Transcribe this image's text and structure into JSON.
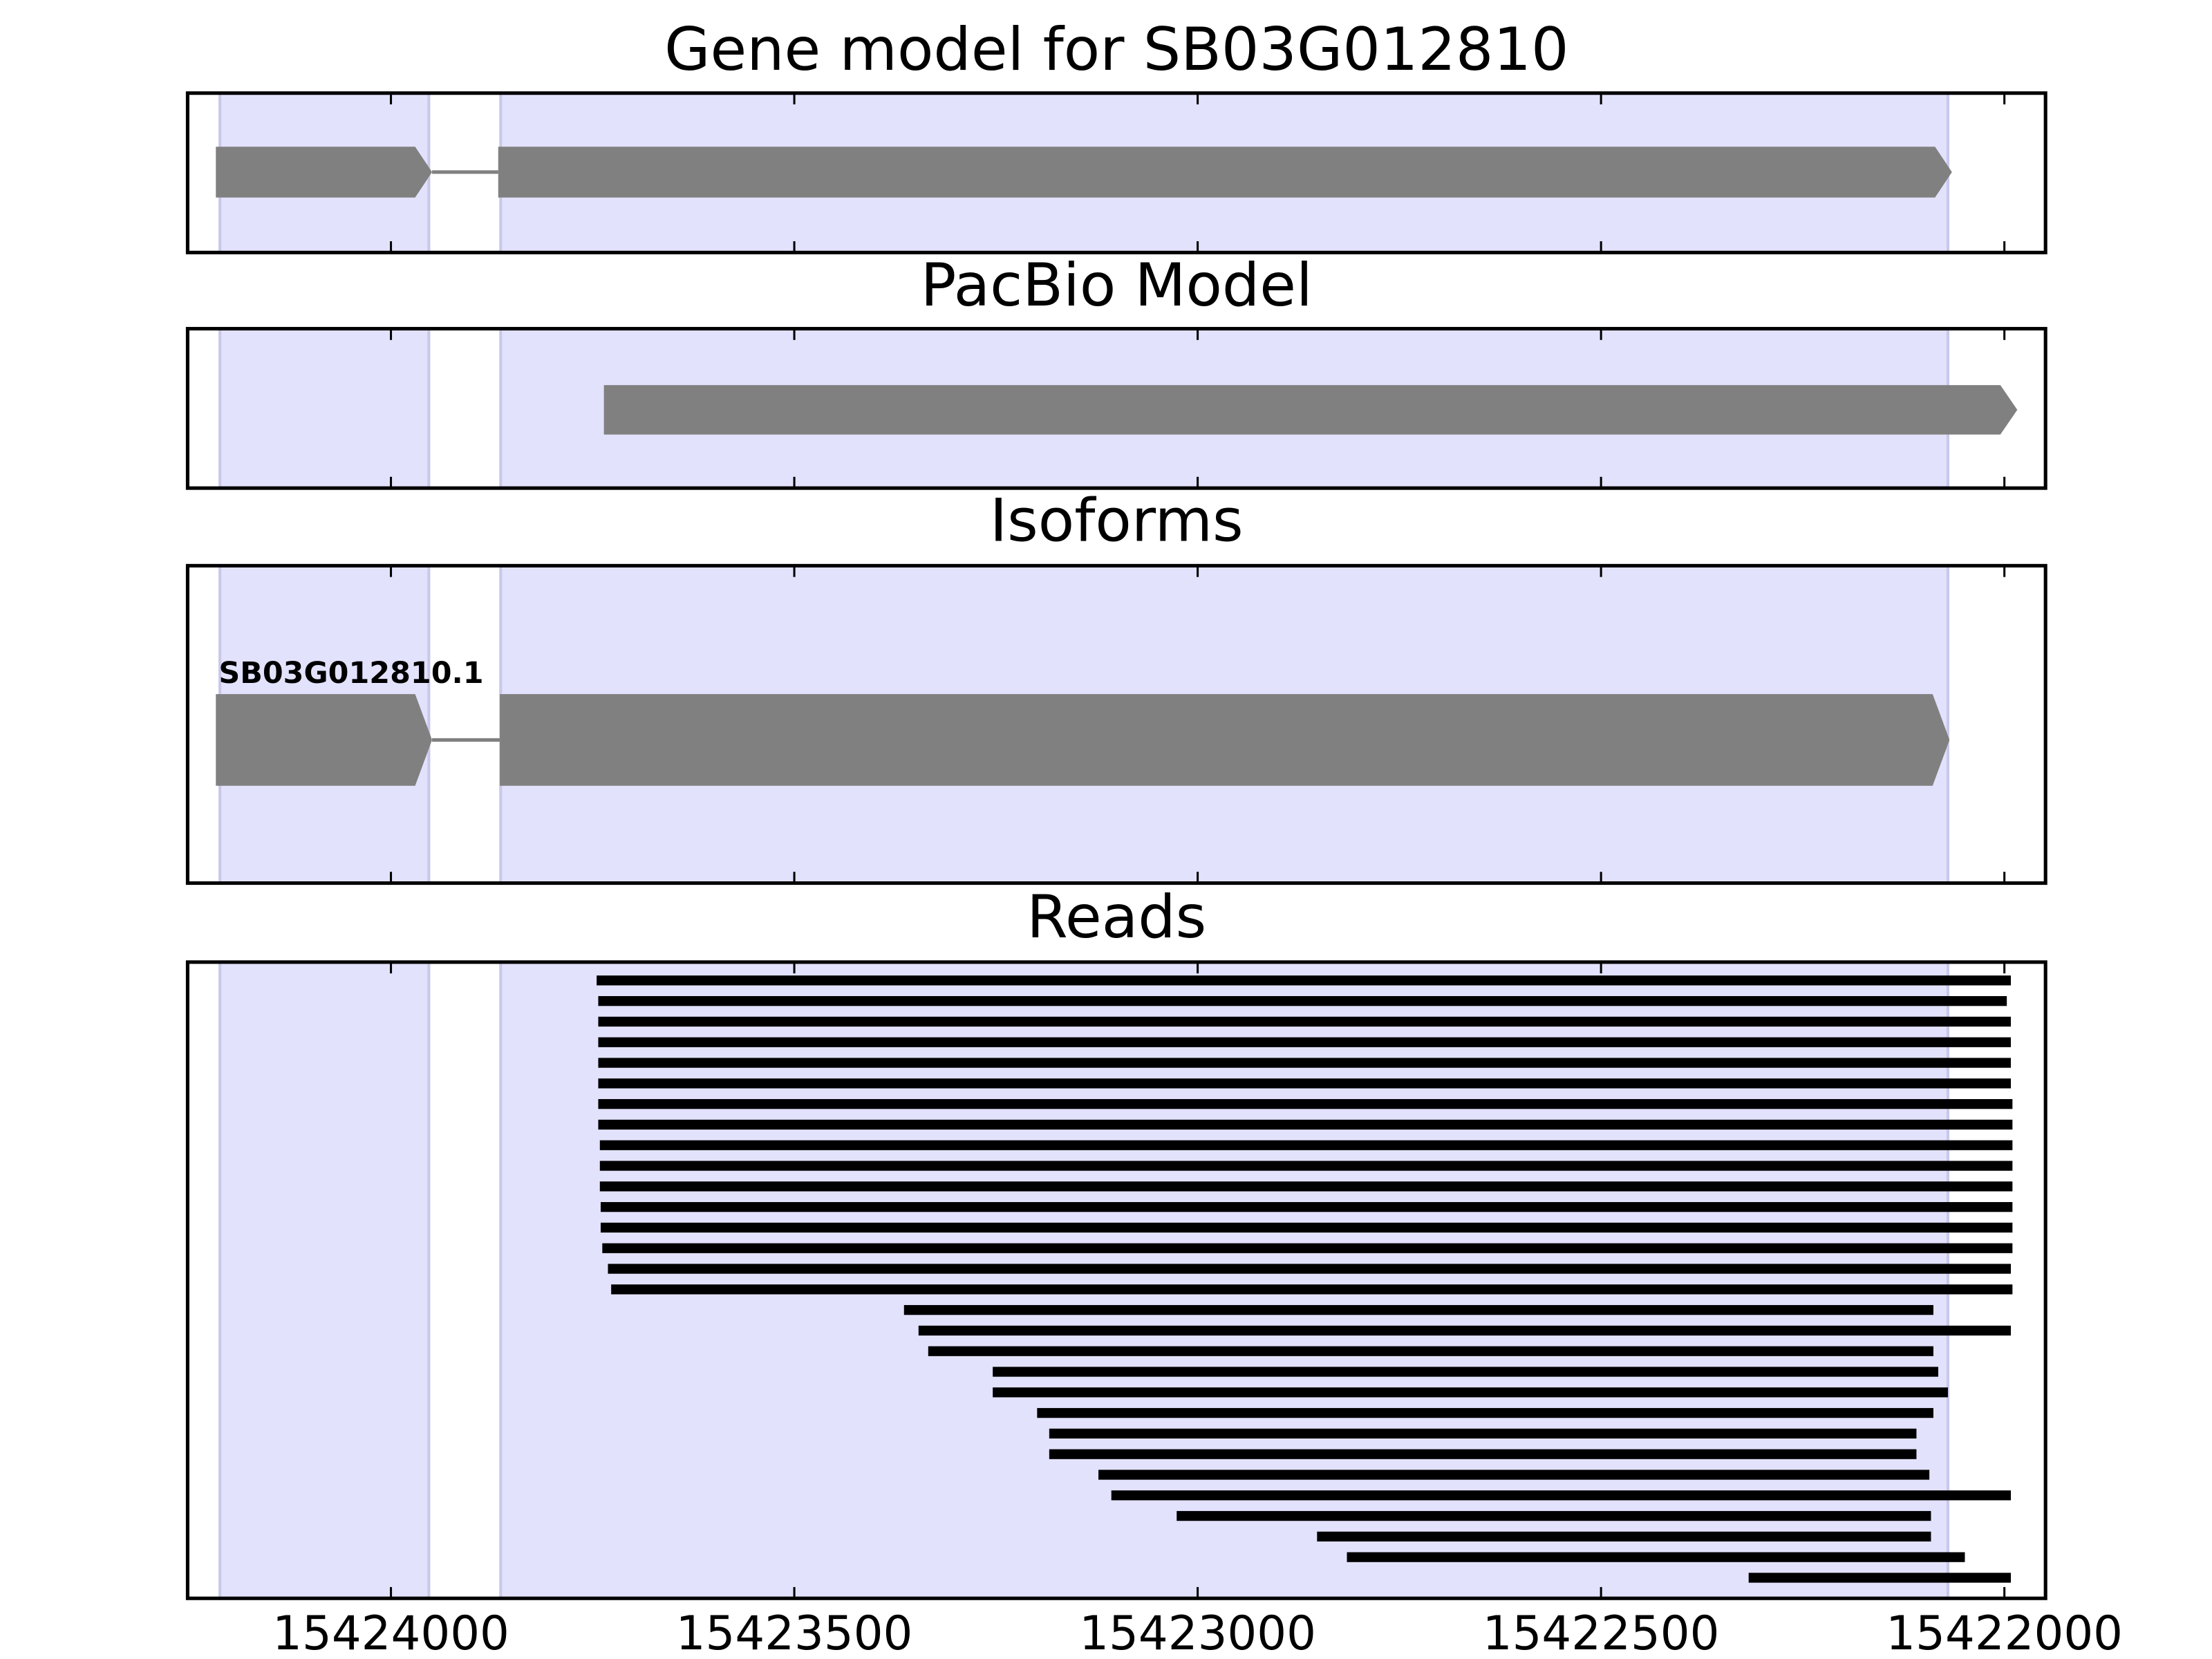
{
  "chart_data": {
    "type": "gene-tracks",
    "xlim": [
      15424252,
      15421949
    ],
    "xticks": [
      15424000,
      15423500,
      15423000,
      15422500,
      15422000
    ],
    "shaded": [
      [
        15424212,
        15423953
      ],
      [
        15423864,
        15422070
      ]
    ],
    "panels": [
      {
        "type": "gene",
        "title": "Gene model for SB03G012810",
        "exons": [
          [
            15424217,
            15423949
          ],
          [
            15423867,
            15422065
          ]
        ]
      },
      {
        "type": "gene",
        "title": "PacBio Model",
        "exons": [
          [
            15423736,
            15421984
          ]
        ]
      },
      {
        "type": "gene",
        "title": "Isoforms",
        "label": "SB03G012810.1",
        "exons": [
          [
            15424217,
            15423949
          ],
          [
            15423865,
            15422068
          ]
        ]
      },
      {
        "type": "reads",
        "title": "Reads",
        "reads": [
          [
            15423745,
            15421992
          ],
          [
            15423743,
            15421997
          ],
          [
            15423743,
            15421992
          ],
          [
            15423743,
            15421992
          ],
          [
            15423743,
            15421992
          ],
          [
            15423743,
            15421992
          ],
          [
            15423743,
            15421990
          ],
          [
            15423743,
            15421990
          ],
          [
            15423741,
            15421990
          ],
          [
            15423741,
            15421990
          ],
          [
            15423741,
            15421990
          ],
          [
            15423740,
            15421990
          ],
          [
            15423740,
            15421990
          ],
          [
            15423738,
            15421990
          ],
          [
            15423731,
            15421992
          ],
          [
            15423727,
            15421990
          ],
          [
            15423364,
            15422088
          ],
          [
            15423346,
            15421992
          ],
          [
            15423334,
            15422088
          ],
          [
            15423254,
            15422082
          ],
          [
            15423254,
            15422070
          ],
          [
            15423199,
            15422088
          ],
          [
            15423184,
            15422109
          ],
          [
            15423184,
            15422109
          ],
          [
            15423123,
            15422093
          ],
          [
            15423107,
            15421992
          ],
          [
            15423026,
            15422091
          ],
          [
            15422852,
            15422091
          ],
          [
            15422815,
            15422049
          ],
          [
            15422317,
            15421992
          ]
        ]
      }
    ]
  }
}
